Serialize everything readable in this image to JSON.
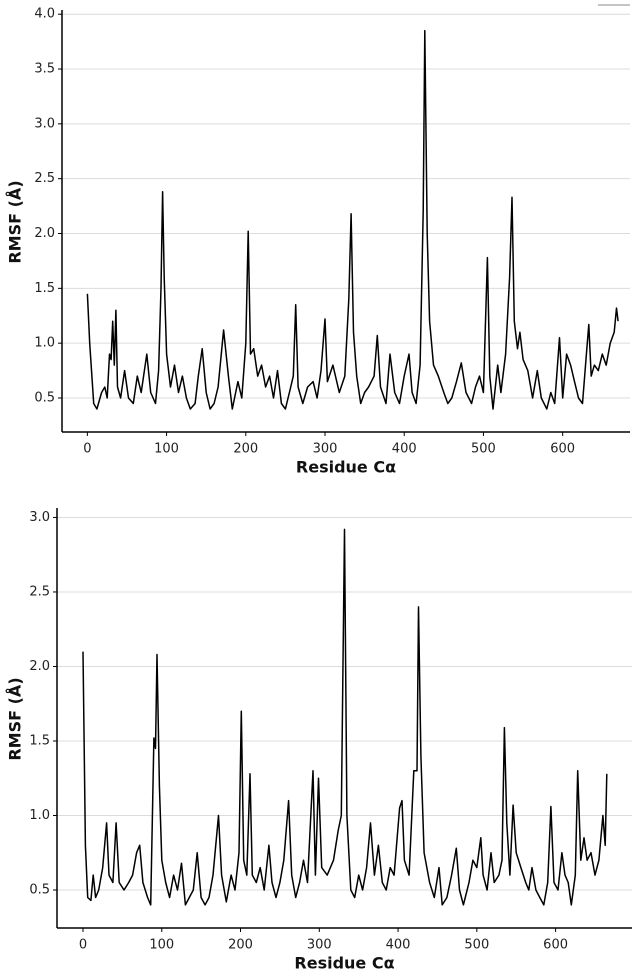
{
  "chart_data": [
    {
      "type": "line",
      "xlabel": "Residue Cα",
      "ylabel": "RMSF (Å)",
      "color": "#000000",
      "grid": true,
      "xlim": [
        -32,
        685
      ],
      "ylim": [
        0.19,
        4.02
      ],
      "xticks": [
        0,
        100,
        200,
        300,
        400,
        500,
        600
      ],
      "yticks": [
        {
          "value": 0.5,
          "label": "0.5"
        },
        {
          "value": 1.0,
          "label": "1.0"
        },
        {
          "value": 1.5,
          "label": "1.5"
        },
        {
          "value": 2.0,
          "label": "2.0"
        },
        {
          "value": 2.5,
          "label": "2.5"
        },
        {
          "value": 3.0,
          "label": "3.0"
        },
        {
          "value": 3.5,
          "label": "3.5"
        },
        {
          "value": 4.0,
          "label": "4.0"
        }
      ],
      "x": [
        0,
        3,
        8,
        12,
        18,
        22,
        25,
        28,
        30,
        32,
        34,
        36,
        38,
        42,
        47,
        52,
        58,
        63,
        68,
        75,
        80,
        86,
        90,
        93,
        95,
        97,
        100,
        105,
        110,
        115,
        120,
        125,
        130,
        136,
        140,
        145,
        150,
        155,
        160,
        165,
        172,
        178,
        183,
        190,
        195,
        200,
        203,
        206,
        210,
        215,
        220,
        225,
        230,
        235,
        240,
        245,
        250,
        255,
        260,
        263,
        266,
        272,
        278,
        285,
        290,
        295,
        300,
        303,
        310,
        318,
        325,
        330,
        333,
        336,
        340,
        345,
        350,
        355,
        362,
        366,
        370,
        377,
        382,
        388,
        394,
        400,
        406,
        410,
        415,
        420,
        424,
        426,
        429,
        432,
        437,
        443,
        450,
        455,
        460,
        466,
        472,
        478,
        485,
        490,
        495,
        500,
        505,
        508,
        512,
        518,
        522,
        528,
        533,
        536,
        539,
        543,
        546,
        550,
        556,
        562,
        568,
        573,
        580,
        585,
        590,
        596,
        600,
        605,
        610,
        615,
        620,
        625,
        630,
        633,
        636,
        640,
        645,
        650,
        655,
        660,
        665,
        668,
        670
      ],
      "values": [
        1.45,
        1.0,
        0.45,
        0.4,
        0.55,
        0.6,
        0.5,
        0.9,
        0.85,
        1.2,
        0.8,
        1.3,
        0.6,
        0.5,
        0.75,
        0.5,
        0.45,
        0.7,
        0.55,
        0.9,
        0.55,
        0.45,
        0.75,
        1.5,
        2.38,
        1.6,
        0.9,
        0.6,
        0.8,
        0.55,
        0.7,
        0.5,
        0.4,
        0.45,
        0.7,
        0.95,
        0.55,
        0.4,
        0.45,
        0.6,
        1.12,
        0.7,
        0.4,
        0.65,
        0.5,
        1.0,
        2.02,
        0.9,
        0.95,
        0.7,
        0.8,
        0.6,
        0.7,
        0.5,
        0.75,
        0.45,
        0.4,
        0.55,
        0.7,
        1.35,
        0.6,
        0.45,
        0.6,
        0.65,
        0.5,
        0.75,
        1.22,
        0.65,
        0.8,
        0.55,
        0.7,
        1.4,
        2.18,
        1.1,
        0.7,
        0.45,
        0.55,
        0.6,
        0.7,
        1.07,
        0.6,
        0.45,
        0.9,
        0.55,
        0.45,
        0.7,
        0.9,
        0.55,
        0.45,
        0.8,
        2.2,
        3.85,
        2.0,
        1.2,
        0.8,
        0.7,
        0.55,
        0.45,
        0.5,
        0.65,
        0.82,
        0.55,
        0.45,
        0.6,
        0.7,
        0.55,
        1.78,
        0.7,
        0.4,
        0.8,
        0.55,
        0.9,
        1.6,
        2.33,
        1.2,
        0.95,
        1.1,
        0.85,
        0.75,
        0.5,
        0.75,
        0.5,
        0.4,
        0.55,
        0.45,
        1.05,
        0.5,
        0.9,
        0.8,
        0.65,
        0.5,
        0.45,
        0.9,
        1.17,
        0.7,
        0.8,
        0.75,
        0.9,
        0.8,
        1.0,
        1.1,
        1.32,
        1.2
      ]
    },
    {
      "type": "line",
      "xlabel": "Residue Cα",
      "ylabel": "RMSF (Å)",
      "color": "#000000",
      "grid": true,
      "xlim": [
        -33,
        697
      ],
      "ylim": [
        0.245,
        3.05
      ],
      "xticks": [
        0,
        100,
        200,
        300,
        400,
        500,
        600
      ],
      "yticks": [
        {
          "value": 0.5,
          "label": "0.5"
        },
        {
          "value": 1.0,
          "label": "1.0"
        },
        {
          "value": 1.5,
          "label": "1.5"
        },
        {
          "value": 2.0,
          "label": "2.0"
        },
        {
          "value": 2.5,
          "label": "2.5"
        },
        {
          "value": 3.0,
          "label": "3.0"
        }
      ],
      "x": [
        0,
        3,
        6,
        10,
        13,
        16,
        20,
        25,
        30,
        33,
        38,
        42,
        46,
        52,
        58,
        63,
        68,
        72,
        76,
        82,
        86,
        90,
        92,
        94,
        97,
        100,
        105,
        110,
        115,
        120,
        125,
        130,
        135,
        140,
        145,
        150,
        155,
        160,
        165,
        172,
        176,
        182,
        188,
        193,
        198,
        201,
        204,
        208,
        212,
        215,
        220,
        225,
        230,
        236,
        240,
        245,
        250,
        255,
        261,
        265,
        270,
        275,
        280,
        285,
        292,
        295,
        299,
        303,
        310,
        318,
        324,
        328,
        332,
        335,
        340,
        345,
        350,
        355,
        360,
        365,
        370,
        375,
        380,
        385,
        390,
        395,
        402,
        405,
        408,
        414,
        420,
        424,
        426,
        429,
        433,
        440,
        446,
        452,
        456,
        462,
        468,
        474,
        478,
        483,
        490,
        495,
        500,
        505,
        508,
        513,
        518,
        522,
        528,
        532,
        535,
        538,
        542,
        546,
        550,
        556,
        562,
        566,
        570,
        575,
        580,
        585,
        590,
        594,
        598,
        603,
        608,
        612,
        616,
        620,
        625,
        628,
        632,
        636,
        640,
        645,
        650,
        655,
        660,
        663,
        665
      ],
      "values": [
        2.1,
        0.8,
        0.45,
        0.43,
        0.6,
        0.45,
        0.5,
        0.65,
        0.95,
        0.6,
        0.55,
        0.95,
        0.55,
        0.5,
        0.55,
        0.6,
        0.75,
        0.8,
        0.55,
        0.45,
        0.4,
        1.52,
        1.45,
        2.08,
        1.2,
        0.7,
        0.55,
        0.45,
        0.6,
        0.5,
        0.68,
        0.4,
        0.45,
        0.5,
        0.75,
        0.45,
        0.4,
        0.45,
        0.6,
        1.0,
        0.6,
        0.42,
        0.6,
        0.5,
        0.75,
        1.7,
        0.7,
        0.6,
        1.28,
        0.6,
        0.55,
        0.65,
        0.5,
        0.8,
        0.55,
        0.45,
        0.55,
        0.7,
        1.1,
        0.6,
        0.45,
        0.55,
        0.7,
        0.55,
        1.3,
        0.6,
        1.25,
        0.65,
        0.6,
        0.7,
        0.9,
        1.0,
        2.92,
        1.0,
        0.5,
        0.45,
        0.6,
        0.5,
        0.65,
        0.95,
        0.6,
        0.8,
        0.55,
        0.5,
        0.65,
        0.6,
        1.05,
        1.1,
        0.7,
        0.6,
        1.3,
        1.3,
        2.4,
        1.4,
        0.75,
        0.55,
        0.45,
        0.65,
        0.4,
        0.45,
        0.6,
        0.78,
        0.5,
        0.4,
        0.55,
        0.7,
        0.65,
        0.85,
        0.6,
        0.5,
        0.75,
        0.55,
        0.6,
        0.7,
        1.59,
        0.95,
        0.6,
        1.07,
        0.75,
        0.65,
        0.55,
        0.5,
        0.65,
        0.5,
        0.45,
        0.4,
        0.55,
        1.06,
        0.55,
        0.5,
        0.75,
        0.6,
        0.55,
        0.4,
        0.6,
        1.3,
        0.7,
        0.85,
        0.7,
        0.75,
        0.6,
        0.7,
        1.0,
        0.8,
        1.28
      ]
    }
  ]
}
